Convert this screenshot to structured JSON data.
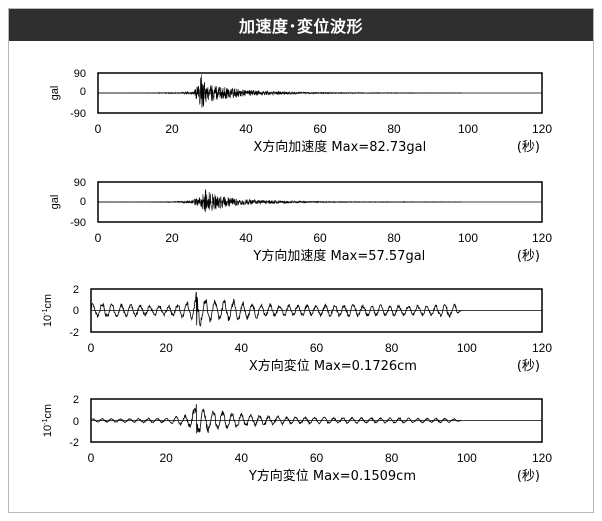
{
  "header": {
    "title": "加速度･変位波形"
  },
  "chart_data": [
    {
      "type": "line",
      "ylabel": "gal",
      "ylim": [
        -90,
        90
      ],
      "yticks": [
        90,
        0,
        -90
      ],
      "xlim": [
        0,
        120
      ],
      "xticks": [
        0,
        20,
        40,
        60,
        80,
        100,
        120
      ],
      "caption": "X方向加速度 Max=82.73gal",
      "unit": "(秒)",
      "max_abs": 82.73,
      "series": [
        {
          "envelope": [
            [
              0,
              0.3
            ],
            [
              12,
              0.5
            ],
            [
              18,
              2
            ],
            [
              22,
              3
            ],
            [
              26,
              8
            ],
            [
              28,
              82.73
            ],
            [
              29,
              45
            ],
            [
              30,
              40
            ],
            [
              33,
              30
            ],
            [
              36,
              24
            ],
            [
              40,
              15
            ],
            [
              45,
              10
            ],
            [
              50,
              7
            ],
            [
              55,
              4
            ],
            [
              60,
              3
            ],
            [
              70,
              2
            ],
            [
              80,
              1.5
            ],
            [
              90,
              1
            ],
            [
              98,
              0.6
            ],
            [
              100,
              0.3
            ],
            [
              120,
              0.3
            ]
          ]
        }
      ]
    },
    {
      "type": "line",
      "ylabel": "gal",
      "ylim": [
        -90,
        90
      ],
      "yticks": [
        90,
        0,
        -90
      ],
      "xlim": [
        0,
        120
      ],
      "xticks": [
        0,
        20,
        40,
        60,
        80,
        100,
        120
      ],
      "caption": "Y方向加速度 Max=57.57gal",
      "unit": "(秒)",
      "max_abs": 57.57,
      "series": [
        {
          "envelope": [
            [
              0,
              0.3
            ],
            [
              12,
              0.5
            ],
            [
              20,
              2
            ],
            [
              25,
              6
            ],
            [
              28,
              25
            ],
            [
              29,
              57.57
            ],
            [
              31,
              40
            ],
            [
              34,
              25
            ],
            [
              38,
              15
            ],
            [
              42,
              11
            ],
            [
              46,
              8
            ],
            [
              50,
              6
            ],
            [
              56,
              4
            ],
            [
              65,
              2
            ],
            [
              80,
              1.5
            ],
            [
              98,
              0.7
            ],
            [
              100,
              0.3
            ],
            [
              120,
              0.3
            ]
          ]
        }
      ]
    },
    {
      "type": "line",
      "ylabel": "10-1cm",
      "ylim": [
        -2,
        2
      ],
      "yticks": [
        2,
        0,
        -2
      ],
      "xlim": [
        0,
        120
      ],
      "xticks": [
        0,
        20,
        40,
        60,
        80,
        100,
        120
      ],
      "caption": "X方向変位 Max=0.1726cm",
      "unit": "(秒)",
      "max_abs": 1.726,
      "series": [
        {
          "envelope": [
            [
              0,
              0.7
            ],
            [
              3,
              0.8
            ],
            [
              10,
              0.6
            ],
            [
              20,
              0.5
            ],
            [
              27,
              1.0
            ],
            [
              28,
              1.726
            ],
            [
              30,
              1.2
            ],
            [
              34,
              1.0
            ],
            [
              38,
              1.1
            ],
            [
              42,
              0.8
            ],
            [
              50,
              0.6
            ],
            [
              60,
              0.55
            ],
            [
              70,
              0.6
            ],
            [
              80,
              0.55
            ],
            [
              90,
              0.5
            ],
            [
              97,
              0.75
            ],
            [
              98,
              0.1
            ],
            [
              120,
              0.1
            ]
          ]
        }
      ]
    },
    {
      "type": "line",
      "ylabel": "10-1cm",
      "ylim": [
        -2,
        2
      ],
      "yticks": [
        2,
        0,
        -2
      ],
      "xlim": [
        0,
        120
      ],
      "xticks": [
        0,
        20,
        40,
        60,
        80,
        100,
        120
      ],
      "caption": "Y方向変位 Max=0.1509cm",
      "unit": "(秒)",
      "max_abs": 1.509,
      "series": [
        {
          "envelope": [
            [
              0,
              0.2
            ],
            [
              10,
              0.2
            ],
            [
              20,
              0.25
            ],
            [
              26,
              0.6
            ],
            [
              28,
              1.509
            ],
            [
              31,
              1.2
            ],
            [
              35,
              0.9
            ],
            [
              40,
              0.7
            ],
            [
              46,
              0.5
            ],
            [
              55,
              0.35
            ],
            [
              70,
              0.3
            ],
            [
              85,
              0.25
            ],
            [
              97,
              0.2
            ],
            [
              98,
              0.05
            ],
            [
              120,
              0.05
            ]
          ]
        }
      ]
    }
  ]
}
